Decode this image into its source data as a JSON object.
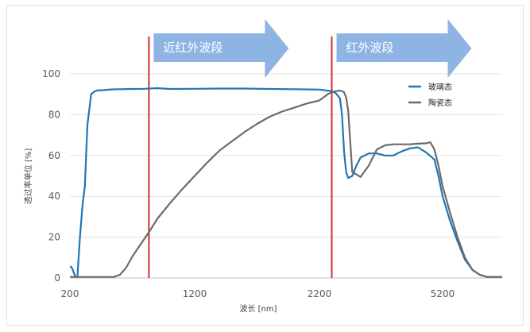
{
  "chart_data": {
    "type": "line",
    "title": "",
    "xlabel": "波长 [nm]",
    "ylabel": "透过率单位 [%]",
    "x_ticks": [
      "200",
      "1200",
      "2200",
      "5200"
    ],
    "y_ticks": [
      "0",
      "20",
      "40",
      "60",
      "80",
      "100"
    ],
    "ylim": [
      0,
      100
    ],
    "grid": "horizontal",
    "legend_position": "top-right",
    "colors": {
      "玻璃态": "#1f77b4",
      "陶瓷态": "#6b6b6b",
      "markers": "#d32f2f",
      "arrows": "#8eb4e3"
    },
    "band_labels": [
      {
        "text": "近红外波段",
        "marker_x": 833
      },
      {
        "text": "红外波段",
        "marker_x": 2500
      }
    ],
    "series": [
      {
        "name": "玻璃态",
        "x": [
          200,
          210,
          220,
          240,
          260,
          280,
          300,
          320,
          340,
          370,
          400,
          430,
          460,
          500,
          550,
          600,
          700,
          800,
          900,
          1000,
          1200,
          1400,
          1600,
          1800,
          2000,
          2200,
          2400,
          2500,
          2600,
          2700,
          2750,
          2800,
          2850,
          2900,
          3000,
          3100,
          3200,
          3400,
          3600,
          3800,
          4000,
          4200,
          4400,
          4600,
          4800,
          5000,
          5100,
          5200,
          5300,
          5400,
          5500,
          5600,
          5700,
          5800,
          5900,
          6000
        ],
        "y": [
          5.5,
          5.5,
          4.5,
          1.0,
          0.5,
          20.0,
          35.0,
          45.0,
          75.0,
          90.0,
          91.5,
          92.0,
          92.0,
          92.2,
          92.4,
          92.5,
          92.6,
          92.7,
          93.0,
          92.6,
          92.7,
          92.8,
          92.8,
          92.6,
          92.5,
          92.3,
          91.8,
          91.5,
          90.5,
          88.0,
          80.0,
          62.0,
          52.0,
          49.0,
          50.0,
          55.0,
          59.0,
          61.0,
          61.0,
          60.0,
          60.0,
          62.0,
          63.5,
          64.0,
          61.5,
          58.0,
          50.0,
          40.0,
          28.0,
          18.0,
          9.0,
          4.0,
          1.5,
          0.5,
          0.5,
          0.5
        ]
      },
      {
        "name": "陶瓷态",
        "x": [
          200,
          300,
          400,
          500,
          550,
          600,
          650,
          700,
          750,
          800,
          850,
          900,
          1000,
          1100,
          1200,
          1300,
          1400,
          1500,
          1600,
          1700,
          1800,
          1900,
          2000,
          2100,
          2200,
          2300,
          2400,
          2500,
          2600,
          2700,
          2750,
          2800,
          2850,
          2900,
          3000,
          3200,
          3400,
          3600,
          3800,
          4000,
          4200,
          4400,
          4600,
          4800,
          4900,
          5000,
          5100,
          5200,
          5300,
          5400,
          5500,
          5600,
          5700,
          5800,
          5900,
          6000
        ],
        "y": [
          0.5,
          0.5,
          0.5,
          0.5,
          0.5,
          1.5,
          5.0,
          10.5,
          15.0,
          19.5,
          24.0,
          29.0,
          36.5,
          43.5,
          50.0,
          56.5,
          62.5,
          67.0,
          71.5,
          75.5,
          79.0,
          81.5,
          83.5,
          85.5,
          87.0,
          88.5,
          90.0,
          91.0,
          91.5,
          91.8,
          91.5,
          91.0,
          88.5,
          82.0,
          52.0,
          49.5,
          55.0,
          63.0,
          65.0,
          65.5,
          65.5,
          65.5,
          65.8,
          66.0,
          66.5,
          63.0,
          55.0,
          45.0,
          32.0,
          20.0,
          10.0,
          4.0,
          1.5,
          0.5,
          0.5,
          0.5
        ]
      }
    ]
  }
}
